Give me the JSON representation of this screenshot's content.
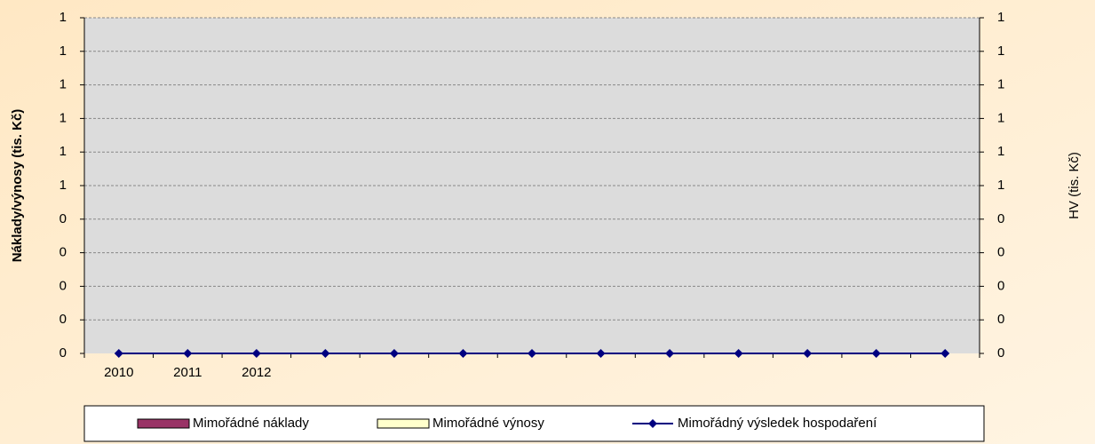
{
  "chart_data": {
    "type": "bar",
    "y_label": "Náklady/výnosy (tis. Kč)",
    "y2_label": "HV (tis. Kč)",
    "categories": [
      "2010",
      "2011",
      "2012",
      null,
      null,
      null,
      null,
      null,
      null,
      null,
      null,
      null,
      null
    ],
    "series": [
      {
        "name": "Mimořádné náklady",
        "type": "bar",
        "color": "#993366",
        "values": [
          0,
          0,
          0,
          0,
          0,
          0,
          0,
          0,
          0,
          0,
          0,
          0,
          0
        ]
      },
      {
        "name": "Mimořádné výnosy",
        "type": "bar",
        "color": "#ffffcc",
        "values": [
          0,
          0,
          0,
          0,
          0,
          0,
          0,
          0,
          0,
          0,
          0,
          0,
          0
        ]
      },
      {
        "name": "Mimořádný výsledek hospodaření",
        "type": "line",
        "axis": "y2",
        "color": "#000080",
        "values": [
          0,
          0,
          0,
          0,
          0,
          0,
          0,
          0,
          0,
          0,
          0,
          0,
          0
        ]
      }
    ],
    "ylim": [
      0,
      1
    ],
    "yticks": [
      0,
      {
        "value": 0.1,
        "label": "0"
      },
      {
        "value": 0.2,
        "label": "0"
      },
      {
        "value": 0.3,
        "label": "0"
      },
      {
        "value": 0.4,
        "label": "0"
      },
      {
        "value": 0.5,
        "label": "1"
      },
      {
        "value": 0.6,
        "label": "1"
      },
      {
        "value": 0.7,
        "label": "1"
      },
      {
        "value": 0.8,
        "label": "1"
      },
      {
        "value": 0.9,
        "label": "1"
      },
      1
    ],
    "y2lim": [
      0,
      1
    ],
    "y2ticks": [
      0,
      {
        "value": 0.1,
        "label": "0"
      },
      {
        "value": 0.2,
        "label": "0"
      },
      {
        "value": 0.3,
        "label": "0"
      },
      {
        "value": 0.4,
        "label": "0"
      },
      {
        "value": 0.5,
        "label": "1"
      },
      {
        "value": 0.6,
        "label": "1"
      },
      {
        "value": 0.7,
        "label": "1"
      },
      {
        "value": 0.8,
        "label": "1"
      },
      {
        "value": 0.9,
        "label": "1"
      },
      1
    ],
    "grid": true,
    "legend": "bottom"
  }
}
